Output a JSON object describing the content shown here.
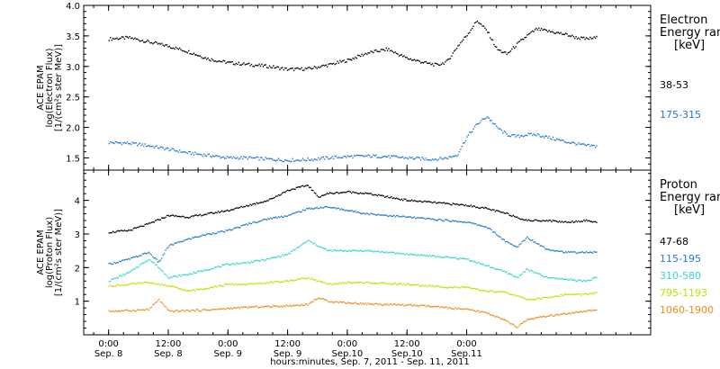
{
  "chart_data": [
    {
      "type": "scatter",
      "ylabel": [
        "ACE EPAM",
        "log(Electron Flux)",
        "[1/(cm²s ster MeV)]"
      ],
      "ylim": [
        1.3,
        4.0
      ],
      "yticks": [
        1.5,
        2.0,
        2.5,
        3.0,
        3.5,
        4.0
      ],
      "ytick_labels": [
        "1.5",
        "2.0",
        "2.5",
        "3.0",
        "3.5",
        "4.0"
      ],
      "legend_title": [
        "Electron",
        "Energy range",
        "[keV]"
      ],
      "series": [
        {
          "name": "38-53",
          "color": "#000000",
          "x": [
            0,
            4,
            8,
            12,
            16,
            20,
            24,
            28,
            32,
            36,
            40,
            44,
            48,
            52,
            56,
            60,
            64,
            66,
            68,
            70,
            72,
            74,
            76,
            78,
            80,
            82,
            84,
            86,
            88,
            90,
            92,
            94,
            96,
            98
          ],
          "y": [
            3.45,
            3.47,
            3.4,
            3.33,
            3.24,
            3.12,
            3.06,
            3.03,
            3.0,
            2.95,
            2.96,
            3.02,
            3.1,
            3.22,
            3.28,
            3.13,
            3.05,
            3.02,
            3.08,
            3.32,
            3.52,
            3.75,
            3.58,
            3.28,
            3.2,
            3.36,
            3.5,
            3.61,
            3.58,
            3.55,
            3.52,
            3.47,
            3.45,
            3.47
          ]
        },
        {
          "name": "175-315",
          "color": "#1f78d1",
          "x": [
            0,
            4,
            8,
            12,
            16,
            20,
            24,
            28,
            32,
            36,
            40,
            44,
            48,
            52,
            56,
            60,
            64,
            66,
            68,
            70,
            72,
            74,
            76,
            78,
            80,
            82,
            84,
            86,
            88,
            90,
            92,
            94,
            96,
            98
          ],
          "y": [
            1.75,
            1.74,
            1.7,
            1.64,
            1.58,
            1.54,
            1.5,
            1.5,
            1.48,
            1.46,
            1.47,
            1.5,
            1.52,
            1.53,
            1.52,
            1.5,
            1.48,
            1.48,
            1.5,
            1.55,
            1.85,
            2.05,
            2.18,
            2.0,
            1.88,
            1.85,
            1.88,
            1.88,
            1.84,
            1.8,
            1.76,
            1.73,
            1.7,
            1.69
          ]
        }
      ]
    },
    {
      "type": "scatter",
      "ylabel": [
        "ACE EPAM",
        "log(Proton Flux)",
        "[1/(cm²s ster MeV)]"
      ],
      "ylim": [
        0,
        4.9
      ],
      "yticks": [
        1,
        2,
        3,
        4
      ],
      "ytick_labels": [
        "1",
        "2",
        "3",
        "4"
      ],
      "legend_title": [
        "Proton",
        "Energy range",
        "[keV]"
      ],
      "series": [
        {
          "name": "47-68",
          "color": "#000000",
          "x": [
            0,
            4,
            8,
            12,
            16,
            20,
            24,
            28,
            32,
            36,
            40,
            42,
            44,
            48,
            52,
            56,
            60,
            64,
            68,
            72,
            76,
            80,
            84,
            88,
            92,
            96,
            98
          ],
          "y": [
            3.05,
            3.1,
            3.3,
            3.55,
            3.5,
            3.6,
            3.7,
            3.85,
            4.0,
            4.3,
            4.45,
            4.1,
            4.2,
            4.25,
            4.2,
            4.1,
            4.0,
            3.95,
            3.9,
            3.85,
            3.75,
            3.6,
            3.4,
            3.4,
            3.35,
            3.4,
            3.35
          ]
        },
        {
          "name": "115-195",
          "color": "#1f78d1",
          "x": [
            0,
            4,
            8,
            10,
            12,
            16,
            20,
            24,
            28,
            32,
            36,
            40,
            44,
            48,
            52,
            56,
            60,
            64,
            68,
            72,
            76,
            80,
            82,
            84,
            88,
            92,
            96,
            98
          ],
          "y": [
            2.1,
            2.25,
            2.45,
            2.15,
            2.65,
            2.85,
            3.0,
            3.1,
            3.3,
            3.45,
            3.55,
            3.75,
            3.8,
            3.7,
            3.6,
            3.55,
            3.5,
            3.45,
            3.4,
            3.35,
            3.2,
            2.75,
            2.6,
            2.9,
            2.55,
            2.45,
            2.45,
            2.45
          ]
        },
        {
          "name": "310-580",
          "color": "#2fd8cf",
          "x": [
            0,
            4,
            8,
            10,
            12,
            16,
            20,
            24,
            28,
            32,
            36,
            40,
            44,
            48,
            52,
            56,
            60,
            64,
            68,
            72,
            76,
            80,
            82,
            84,
            88,
            92,
            96,
            98
          ],
          "y": [
            1.6,
            1.85,
            2.25,
            2.0,
            1.7,
            1.8,
            1.95,
            2.1,
            2.15,
            2.25,
            2.4,
            2.8,
            2.5,
            2.5,
            2.5,
            2.45,
            2.4,
            2.35,
            2.3,
            2.25,
            2.05,
            1.85,
            1.7,
            1.95,
            1.7,
            1.65,
            1.6,
            1.7
          ]
        },
        {
          "name": "795-1193",
          "color": "#c2e000",
          "x": [
            0,
            4,
            8,
            12,
            16,
            20,
            24,
            28,
            32,
            36,
            40,
            44,
            48,
            52,
            56,
            60,
            64,
            68,
            72,
            76,
            80,
            84,
            88,
            92,
            96,
            98
          ],
          "y": [
            1.45,
            1.5,
            1.55,
            1.45,
            1.3,
            1.4,
            1.5,
            1.5,
            1.55,
            1.6,
            1.7,
            1.5,
            1.55,
            1.55,
            1.52,
            1.5,
            1.45,
            1.42,
            1.4,
            1.3,
            1.25,
            1.05,
            1.1,
            1.2,
            1.2,
            1.25
          ]
        },
        {
          "name": "1060-1900",
          "color": "#f08a1c",
          "x": [
            0,
            4,
            8,
            10,
            12,
            16,
            20,
            24,
            28,
            32,
            36,
            40,
            42,
            44,
            48,
            52,
            56,
            60,
            64,
            68,
            72,
            76,
            80,
            82,
            84,
            88,
            92,
            96,
            98
          ],
          "y": [
            0.7,
            0.72,
            0.75,
            1.05,
            0.7,
            0.72,
            0.74,
            0.78,
            0.82,
            0.84,
            0.86,
            0.9,
            1.1,
            1.0,
            0.95,
            0.92,
            0.9,
            0.88,
            0.85,
            0.8,
            0.75,
            0.65,
            0.4,
            0.22,
            0.45,
            0.55,
            0.62,
            0.7,
            0.75
          ]
        }
      ]
    }
  ],
  "x_axis": {
    "xlim": [
      -5,
      109
    ],
    "ticks": [
      {
        "x": 0,
        "time": "0:00",
        "date": "Sep. 8"
      },
      {
        "x": 12,
        "time": "12:00",
        "date": "Sep. 8"
      },
      {
        "x": 24,
        "time": "0:00",
        "date": "Sep. 9"
      },
      {
        "x": 36,
        "time": "12:00",
        "date": "Sep. 9"
      },
      {
        "x": 48,
        "time": "0:00",
        "date": "Sep.10"
      },
      {
        "x": 60,
        "time": "12:00",
        "date": "Sep.10"
      },
      {
        "x": 72,
        "time": "0:00",
        "date": "Sep.11"
      }
    ],
    "xlabel": "hours:minutes, Sep.  7, 2011 - Sep. 11, 2011"
  }
}
